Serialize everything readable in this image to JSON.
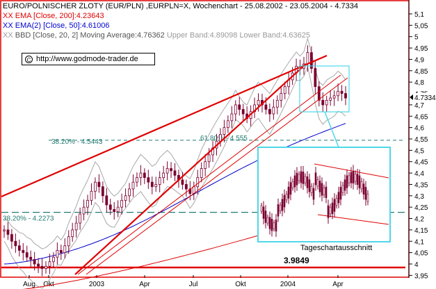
{
  "legend": {
    "title": "EURO/POLNISCHER ZLOTY (EUR/PLN) ,EURPLN=X, Wochenchart - 25.08.2002 - 23.05.2004 - 4.7334",
    "ema200": "EMA [Close, 200]:4.23643",
    "ema50": "EMA(2) [Close, 50]:4.61006",
    "bbd_main": "BBD [Close, 20, 2] Moving Average:4.76362",
    "bbd_bands": "Upper Band:4.89098 Lower Band:4.63625",
    "xx": "XX"
  },
  "copyright": "http://www.godmode-trader.de",
  "colors": {
    "frame": "#e00000",
    "trend": "#e00000",
    "ema200": "#e00000",
    "ema50": "#0000cc",
    "bands": "#a8a8a8",
    "candles": "#7a0030",
    "highlight": "#4dd8e8",
    "fib": "#207a70",
    "price_tag_line": "#000000"
  },
  "chart_data": {
    "type": "candlestick",
    "y_ticks": [
      "3,95",
      "4",
      "4,05",
      "4,1",
      "4,15",
      "4,2",
      "4,25",
      "4,3",
      "4,35",
      "4,4",
      "4,45",
      "4,5",
      "4,55",
      "4,6",
      "4,65",
      "4,7",
      "4,75",
      "4,8",
      "4,85",
      "4,9",
      "4,95",
      "5",
      "5,05",
      "5,1"
    ],
    "x_labels": [
      "Aug",
      "Okt",
      "2003",
      "Apr",
      "Jul",
      "Okt",
      "2004",
      "Apr"
    ],
    "last_price": "4.7334",
    "support_level": {
      "label": "3.9849",
      "value": 3.9849
    },
    "fib_levels": [
      {
        "label": "38.20% - 4.5443",
        "value": 4.5443
      },
      {
        "label": "61.80% - 4.555",
        "value": 4.555
      },
      {
        "label": "38.20% - 4.2273",
        "value": 4.2273
      }
    ],
    "inset_label": "Tageschartausschnitt",
    "weekly_close": [
      4.15,
      4.13,
      4.1,
      4.08,
      4.06,
      4.05,
      4.03,
      4.02,
      4.0,
      3.99,
      3.98,
      3.99,
      4.01,
      4.03,
      4.06,
      4.05,
      4.08,
      4.12,
      4.15,
      4.18,
      4.22,
      4.25,
      4.28,
      4.32,
      4.36,
      4.34,
      4.3,
      4.26,
      4.24,
      4.23,
      4.25,
      4.28,
      4.3,
      4.33,
      4.36,
      4.38,
      4.4,
      4.38,
      4.36,
      4.34,
      4.35,
      4.38,
      4.4,
      4.42,
      4.41,
      4.39,
      4.37,
      4.35,
      4.33,
      4.31,
      4.34,
      4.38,
      4.42,
      4.45,
      4.48,
      4.51,
      4.54,
      4.57,
      4.6,
      4.63,
      4.66,
      4.7,
      4.68,
      4.66,
      4.64,
      4.67,
      4.7,
      4.72,
      4.7,
      4.68,
      4.66,
      4.69,
      4.72,
      4.75,
      4.78,
      4.81,
      4.84,
      4.87,
      4.86,
      4.88,
      4.93,
      4.86,
      4.78,
      4.72,
      4.7,
      4.72,
      4.73,
      4.74,
      4.76,
      4.75,
      4.73
    ],
    "ema200_note": "EMA 200 rises from about 3.95 to 4.24",
    "ema50_note": "EMA 50 rises from about 4.00 to 4.61"
  }
}
